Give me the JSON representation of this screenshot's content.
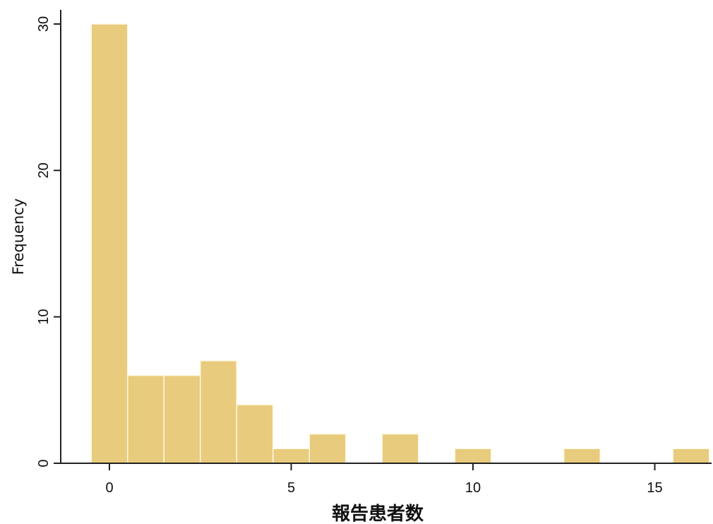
{
  "chart_data": {
    "type": "bar",
    "subtype": "histogram",
    "xlabel": "報告患者数",
    "ylabel": "Frequency",
    "bin_width": 1,
    "bins": [
      {
        "x": 0,
        "count": 30
      },
      {
        "x": 1,
        "count": 6
      },
      {
        "x": 2,
        "count": 6
      },
      {
        "x": 3,
        "count": 7
      },
      {
        "x": 4,
        "count": 4
      },
      {
        "x": 5,
        "count": 1
      },
      {
        "x": 6,
        "count": 2
      },
      {
        "x": 8,
        "count": 2
      },
      {
        "x": 10,
        "count": 1
      },
      {
        "x": 13,
        "count": 1
      },
      {
        "x": 16,
        "count": 1
      }
    ],
    "xlim": [
      -1.3,
      16.5
    ],
    "ylim": [
      0,
      30
    ],
    "x_ticks": [
      0,
      5,
      10,
      15
    ],
    "y_ticks": [
      0,
      10,
      20,
      30
    ],
    "bar_color": "#E8CB7C",
    "bar_edge_color": "#FFF8E6",
    "axis_color": "#222222",
    "grid": false,
    "legend": "none"
  }
}
